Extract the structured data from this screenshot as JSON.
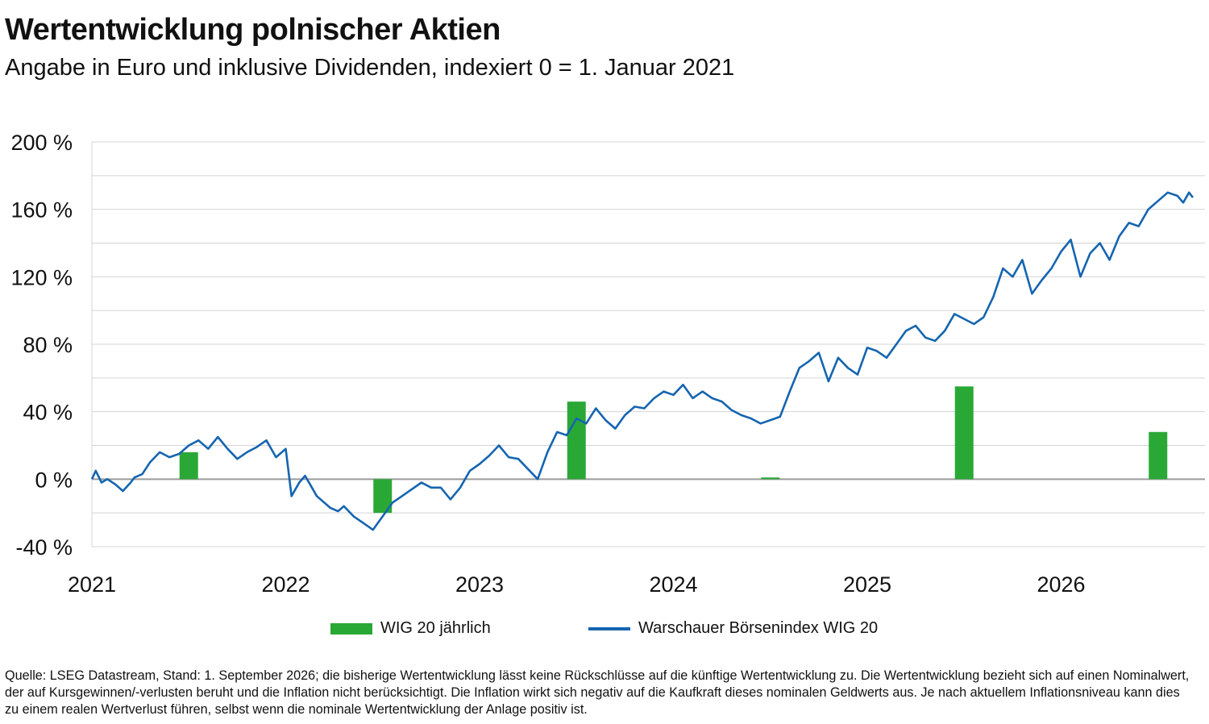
{
  "title": "Wertentwicklung polnischer Aktien",
  "subtitle": "Angabe in Euro und inklusive Dividenden, indexiert 0 = 1. Januar 2021",
  "chart_data": {
    "type": "bar+line",
    "ylim": [
      -40,
      200
    ],
    "yticks": [
      -40,
      0,
      40,
      80,
      120,
      160,
      200
    ],
    "ytick_labels": [
      "-40 %",
      "0 %",
      "40 %",
      "80 %",
      "120 %",
      "160 %",
      "200 %"
    ],
    "xlim": [
      2021.0,
      2026.8
    ],
    "xticks": [
      2021,
      2022,
      2023,
      2024,
      2025,
      2026
    ],
    "xtick_labels": [
      "2021",
      "2022",
      "2023",
      "2024",
      "2025",
      "2026"
    ],
    "grid": true,
    "legend_position": "bottom",
    "series": [
      {
        "name": "WIG 20 jährlich",
        "kind": "bar",
        "color": "#2aa836",
        "x": [
          2021.5,
          2022.5,
          2023.5,
          2024.5,
          2025.5,
          2026.5
        ],
        "values": [
          16,
          -20,
          46,
          1,
          55,
          28
        ]
      },
      {
        "name": "Warschauer Börsenindex WIG 20",
        "kind": "line",
        "color": "#1565b0",
        "x": [
          2021.0,
          2021.02,
          2021.05,
          2021.08,
          2021.12,
          2021.16,
          2021.2,
          2021.22,
          2021.26,
          2021.3,
          2021.35,
          2021.4,
          2021.45,
          2021.5,
          2021.55,
          2021.6,
          2021.65,
          2021.7,
          2021.75,
          2021.8,
          2021.85,
          2021.9,
          2021.95,
          2022.0,
          2022.03,
          2022.07,
          2022.1,
          2022.13,
          2022.16,
          2022.2,
          2022.23,
          2022.27,
          2022.3,
          2022.35,
          2022.4,
          2022.45,
          2022.5,
          2022.55,
          2022.6,
          2022.65,
          2022.7,
          2022.75,
          2022.8,
          2022.85,
          2022.9,
          2022.95,
          2023.0,
          2023.05,
          2023.1,
          2023.15,
          2023.2,
          2023.25,
          2023.3,
          2023.35,
          2023.4,
          2023.45,
          2023.5,
          2023.55,
          2023.6,
          2023.65,
          2023.7,
          2023.75,
          2023.8,
          2023.85,
          2023.9,
          2023.95,
          2024.0,
          2024.05,
          2024.1,
          2024.15,
          2024.2,
          2024.25,
          2024.3,
          2024.35,
          2024.4,
          2024.45,
          2024.5,
          2024.55,
          2024.6,
          2024.65,
          2024.7,
          2024.75,
          2024.8,
          2024.85,
          2024.9,
          2024.95,
          2025.0,
          2025.05,
          2025.1,
          2025.15,
          2025.2,
          2025.25,
          2025.3,
          2025.35,
          2025.4,
          2025.45,
          2025.5,
          2025.55,
          2025.6,
          2025.65,
          2025.7,
          2025.75,
          2025.8,
          2025.85,
          2025.9,
          2025.95,
          2026.0,
          2026.05,
          2026.1,
          2026.15,
          2026.2,
          2026.25,
          2026.3,
          2026.35,
          2026.4,
          2026.45,
          2026.5,
          2026.55,
          2026.6,
          2026.63,
          2026.66,
          2026.68
        ],
        "values": [
          0,
          5,
          -2,
          0,
          -3,
          -7,
          -2,
          1,
          3,
          10,
          16,
          13,
          15,
          20,
          23,
          18,
          25,
          18,
          12,
          16,
          19,
          23,
          13,
          18,
          -10,
          -2,
          2,
          -4,
          -10,
          -14,
          -17,
          -19,
          -16,
          -22,
          -26,
          -30,
          -22,
          -14,
          -10,
          -6,
          -2,
          -5,
          -5,
          -12,
          -5,
          5,
          9,
          14,
          20,
          13,
          12,
          6,
          0,
          16,
          28,
          26,
          36,
          33,
          42,
          35,
          30,
          38,
          43,
          42,
          48,
          52,
          50,
          56,
          48,
          52,
          48,
          46,
          41,
          38,
          36,
          33,
          35,
          37,
          52,
          66,
          70,
          75,
          58,
          72,
          66,
          62,
          78,
          76,
          72,
          80,
          88,
          91,
          84,
          82,
          88,
          98,
          95,
          92,
          96,
          108,
          125,
          120,
          130,
          110,
          118,
          125,
          135,
          142,
          120,
          134,
          140,
          130,
          144,
          152,
          150,
          160,
          165,
          170,
          168,
          164,
          170,
          167
        ]
      }
    ]
  },
  "legend": {
    "bar_label": "WIG 20 jährlich",
    "line_label": "Warschauer Börsenindex WIG 20"
  },
  "footnote": "Quelle: LSEG Datastream, Stand: 1. September 2026; die bisherige Wertentwicklung lässt keine Rückschlüsse auf die künftige Wertentwicklung zu. Die Wertentwicklung bezieht sich auf einen Nominalwert, der auf Kursgewinnen/-verlusten beruht und die Inflation nicht berücksichtigt. Die Inflation wirkt sich negativ auf die Kaufkraft dieses nominalen Geldwerts aus. Je nach aktuellem Inflationsniveau kann dies zu einem realen Wertverlust führen, selbst wenn die nominale Wertentwicklung der Anlage positiv ist."
}
